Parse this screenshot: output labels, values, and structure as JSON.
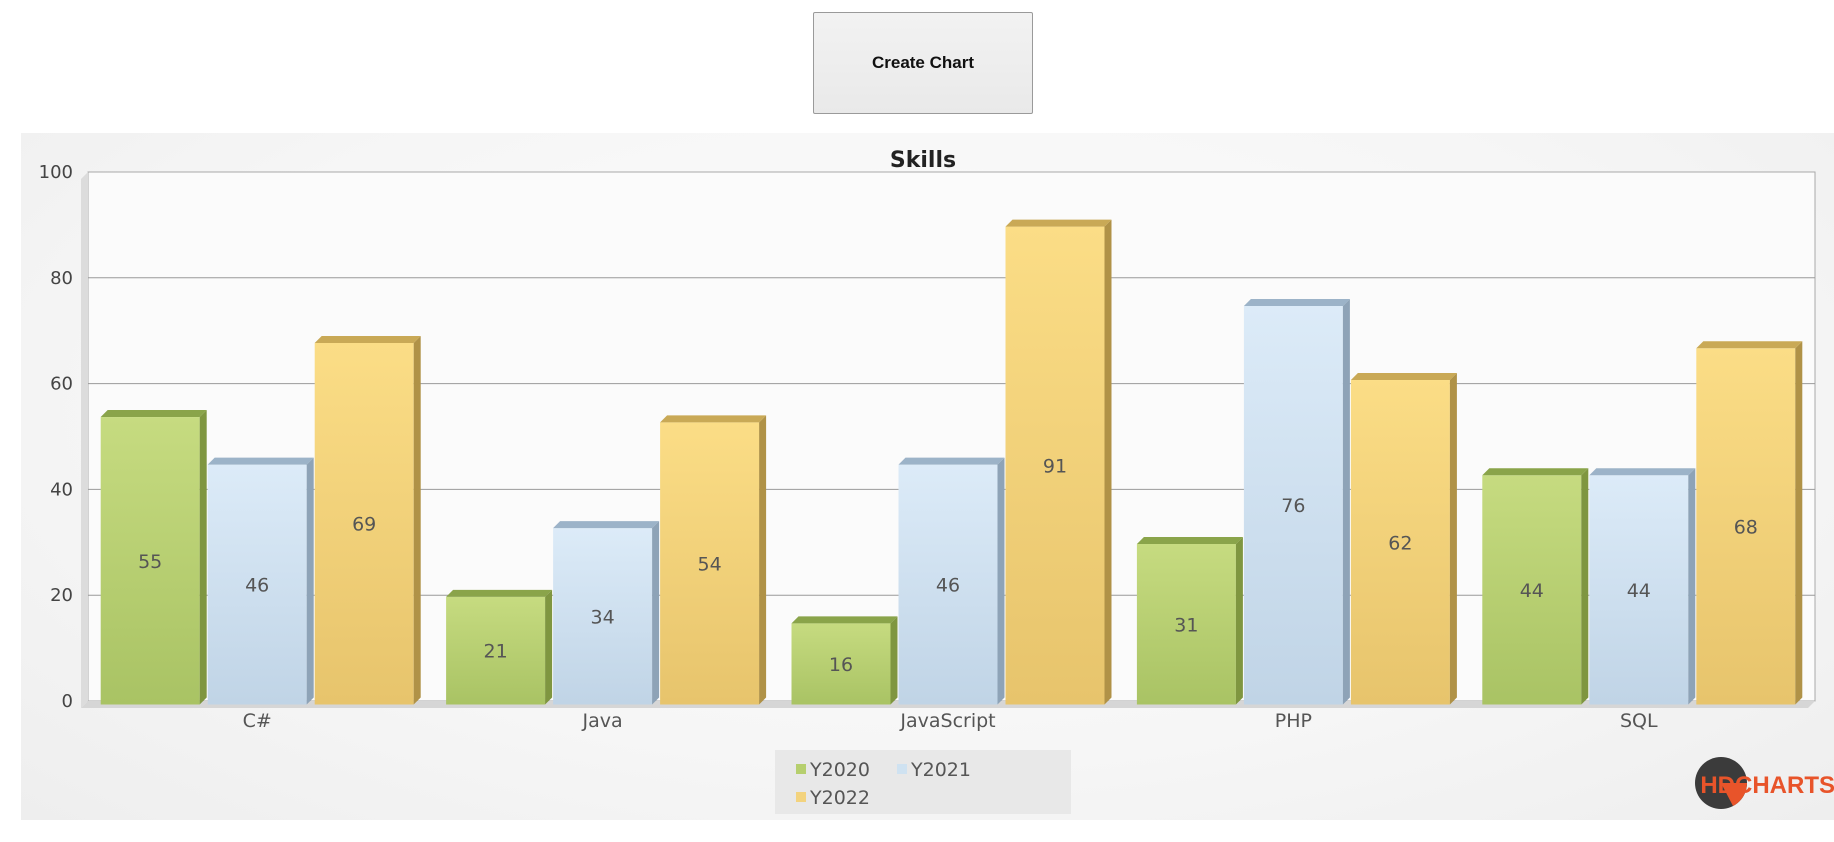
{
  "toolbar": {
    "create_chart_label": "Create Chart"
  },
  "logo": {
    "text": "HDCHARTS",
    "color": "#e8542a"
  },
  "chart_data": {
    "type": "bar",
    "title": "Skills",
    "xlabel": "",
    "ylabel": "",
    "categories": [
      "C#",
      "Java",
      "JavaScript",
      "PHP",
      "SQL"
    ],
    "ylim": [
      0,
      100
    ],
    "yticks": [
      0,
      20,
      40,
      60,
      80,
      100
    ],
    "grid": true,
    "legend_position": "bottom-center",
    "series": [
      {
        "name": "Y2020",
        "values": [
          55,
          21,
          16,
          31,
          44
        ],
        "color": "#b6cf6e"
      },
      {
        "name": "Y2021",
        "values": [
          46,
          34,
          46,
          76,
          44
        ],
        "color": "#cfe2f1"
      },
      {
        "name": "Y2022",
        "values": [
          69,
          54,
          91,
          62,
          68
        ],
        "color": "#f3d37e"
      }
    ]
  }
}
